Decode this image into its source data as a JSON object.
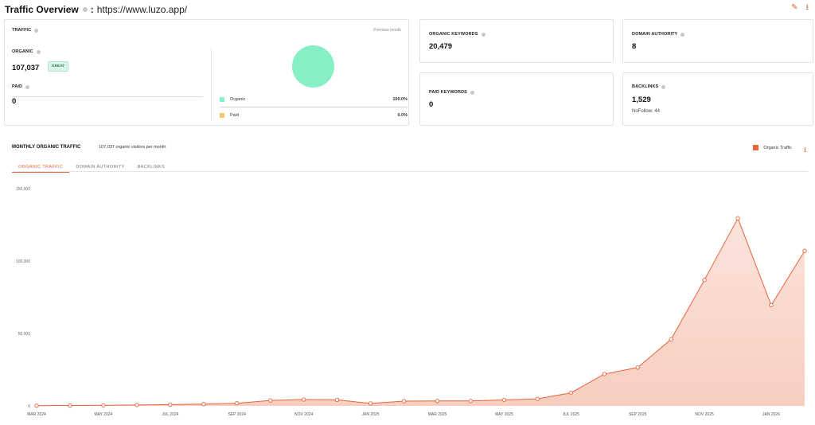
{
  "header": {
    "title": "Traffic Overview",
    "separator": ":",
    "url": "https://www.luzo.app/",
    "actions": [
      {
        "icon": "edit-icon",
        "glyph": "✎"
      },
      {
        "icon": "download-icon",
        "glyph": "⭳"
      }
    ]
  },
  "traffic": {
    "label": "TRAFFIC",
    "period": "Previous month",
    "organic_label": "ORGANIC",
    "organic_value": "107,037",
    "organic_badge": "GREAT",
    "paid_label": "PAID",
    "paid_value": "0",
    "legend": [
      {
        "name": "Organic",
        "pct": "100.0%",
        "color": "#86efc4"
      },
      {
        "name": "Paid",
        "pct": "0.0%",
        "color": "#f5c56a"
      }
    ],
    "share_organic": 1.0
  },
  "organic_keywords": {
    "label": "ORGANIC KEYWORDS",
    "value": "20,479"
  },
  "domain_authority": {
    "label": "DOMAIN AUTHORITY",
    "value": "8"
  },
  "paid_keywords": {
    "label": "PAID KEYWORDS",
    "value": "0"
  },
  "backlinks": {
    "label": "BACKLINKS",
    "value": "1,529",
    "nofollow": "NoFollow: 44"
  },
  "monthly": {
    "title": "MONTHLY ORGANIC TRAFFIC",
    "subtitle": "107,037 organic visitors per month",
    "tabs": [
      "ORGANIC TRAFFIC",
      "DOMAIN AUTHORITY",
      "BACKLINKS"
    ],
    "active_tab": 0,
    "legend": "Organic Traffic",
    "accent": "#e8643a"
  },
  "chart_data": {
    "type": "area",
    "x": [
      "MAR 2024",
      "APR 2024",
      "MAY 2024",
      "JUN 2024",
      "JUL 2024",
      "AUG 2024",
      "SEP 2024",
      "OCT 2024",
      "NOV 2024",
      "DEC 2024",
      "JAN 2025",
      "FEB 2025",
      "MAR 2025",
      "APR 2025",
      "MAY 2025",
      "JUN 2025",
      "JUL 2025",
      "AUG 2025",
      "SEP 2025",
      "OCT 2025",
      "NOV 2025",
      "DEC 2025",
      "JAN 2026",
      "FEB 2026"
    ],
    "x_tick_labels": [
      "MAR 2024",
      "MAY 2024",
      "JUL 2024",
      "SEP 2024",
      "NOV 2024",
      "JAN 2025",
      "MAR 2025",
      "MAY 2025",
      "JUL 2025",
      "SEP 2025",
      "NOV 2025",
      "JAN 2026"
    ],
    "series": [
      {
        "name": "Organic Traffic",
        "values": [
          100,
          300,
          400,
          600,
          900,
          1200,
          1800,
          3800,
          4400,
          4200,
          1700,
          3300,
          3400,
          3400,
          4100,
          4900,
          9000,
          22000,
          26500,
          46000,
          87000,
          129500,
          69500,
          107037
        ]
      }
    ],
    "y_ticks": [
      "0",
      "50,000",
      "100,000",
      "150,000"
    ],
    "ylim": [
      0,
      150000
    ],
    "grid": false,
    "legend": "top-right"
  }
}
